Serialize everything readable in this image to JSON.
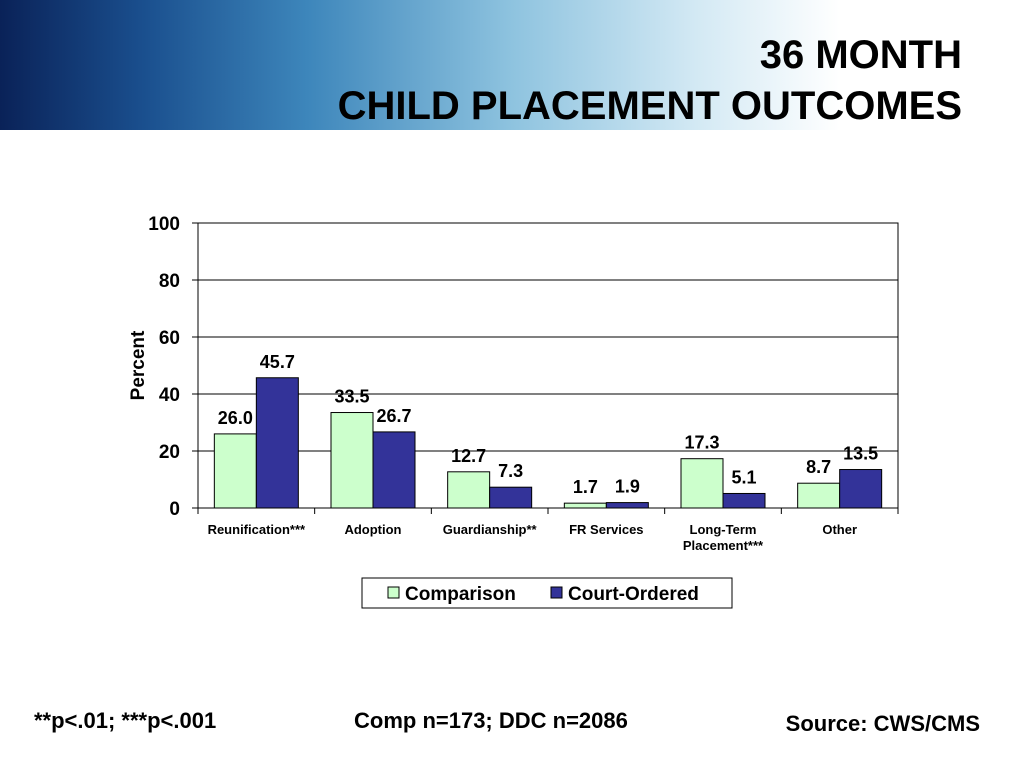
{
  "slide": {
    "title_line1": "36 MONTH",
    "title_line2": "CHILD PLACEMENT OUTCOMES"
  },
  "footer": {
    "significance": "**p<.01; ***p<.001",
    "sample_sizes": "Comp n=173; DDC n=2086",
    "source": "Source: CWS/CMS"
  },
  "chart_data": {
    "type": "bar",
    "ylabel": "Percent",
    "xlabel": "",
    "ylim": [
      0,
      100
    ],
    "yticks": [
      0,
      20,
      40,
      60,
      80,
      100
    ],
    "grid": true,
    "legend_position": "bottom",
    "categories": [
      [
        "Reunification***"
      ],
      [
        "Adoption"
      ],
      [
        "Guardianship**"
      ],
      [
        "FR Services"
      ],
      [
        "Long-Term",
        "Placement***"
      ],
      [
        "Other"
      ]
    ],
    "series": [
      {
        "name": "Comparison",
        "color": "#ccffcc",
        "values": [
          26.0,
          33.5,
          12.7,
          1.7,
          17.3,
          8.7
        ],
        "labels": [
          "26.0",
          "33.5",
          "12.7",
          "1.7",
          "17.3",
          "8.7"
        ]
      },
      {
        "name": "Court-Ordered",
        "color": "#333399",
        "values": [
          45.7,
          26.7,
          7.3,
          1.9,
          5.1,
          13.5
        ],
        "labels": [
          "45.7",
          "26.7",
          "7.3",
          "1.9",
          "5.1",
          "13.5"
        ]
      }
    ]
  }
}
